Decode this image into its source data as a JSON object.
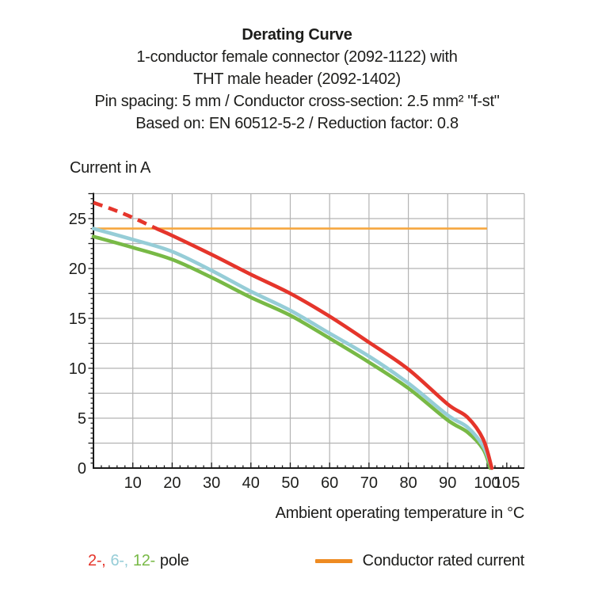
{
  "title": {
    "heading": "Derating Curve",
    "lines": [
      "1-conductor female connector (2092-1122) with",
      "THT male header (2092-1402)",
      "Pin spacing: 5 mm / Conductor cross-section: 2.5 mm² \"f-st\"",
      "Based on: EN 60512-5-2 / Reduction factor: 0.8"
    ]
  },
  "axis": {
    "y_title": "Current in A",
    "x_title": "Ambient operating temperature in °C"
  },
  "legend": {
    "pole_items": [
      {
        "text": "2-,",
        "color": "#E5352B"
      },
      {
        "text": "6-,",
        "color": "#96CDD7"
      },
      {
        "text": "12-",
        "color": "#78B946"
      }
    ],
    "pole_suffix": "pole",
    "rated_label": "Conductor rated current",
    "rated_color": "#EE8B22"
  },
  "chart_data": {
    "type": "line",
    "title": "Derating Curve",
    "xlabel": "Ambient operating temperature in °C",
    "ylabel": "Current in A",
    "xlim": [
      0,
      109.5
    ],
    "ylim": [
      0,
      27.5
    ],
    "xticks": [
      10,
      20,
      30,
      40,
      50,
      60,
      70,
      80,
      90,
      100,
      105
    ],
    "yticks": [
      0,
      5,
      10,
      15,
      20,
      25
    ],
    "grid": "on",
    "grid_x_step": 10,
    "grid_y_step": 2.5,
    "legend_position": "bottom",
    "colors": {
      "grid": "#B3B3B3",
      "axis": "#1A1A1A",
      "text": "#1D1D1B"
    },
    "series": [
      {
        "name": "2-pole",
        "color": "#E5352B",
        "width": 4.6,
        "dashed_until_x": 16,
        "x": [
          0,
          5,
          10,
          16,
          20,
          30,
          40,
          50,
          60,
          70,
          80,
          90,
          95,
          99,
          101.2
        ],
        "y": [
          26.6,
          25.9,
          25.1,
          24.0,
          23.3,
          21.4,
          19.4,
          17.5,
          15.2,
          12.6,
          9.9,
          6.4,
          5.1,
          2.9,
          0
        ]
      },
      {
        "name": "6-pole",
        "color": "#96CDD7",
        "width": 4.6,
        "x": [
          0,
          10,
          20,
          30,
          40,
          50,
          60,
          70,
          80,
          90,
          95,
          99,
          101.2
        ],
        "y": [
          24.0,
          22.9,
          21.7,
          19.8,
          17.7,
          15.8,
          13.5,
          11.2,
          8.5,
          5.3,
          4.1,
          2.2,
          0
        ]
      },
      {
        "name": "12-pole",
        "color": "#78B946",
        "width": 4.6,
        "x": [
          0,
          10,
          20,
          30,
          40,
          50,
          60,
          70,
          80,
          90,
          95,
          99,
          100.8
        ],
        "y": [
          23.2,
          22.1,
          20.9,
          19.1,
          17.1,
          15.3,
          13.0,
          10.6,
          8.0,
          4.8,
          3.6,
          1.9,
          0
        ]
      },
      {
        "name": "Conductor rated current",
        "color": "#F6A73F",
        "width": 2.6,
        "x": [
          0,
          100
        ],
        "y": [
          24,
          24
        ]
      }
    ]
  }
}
